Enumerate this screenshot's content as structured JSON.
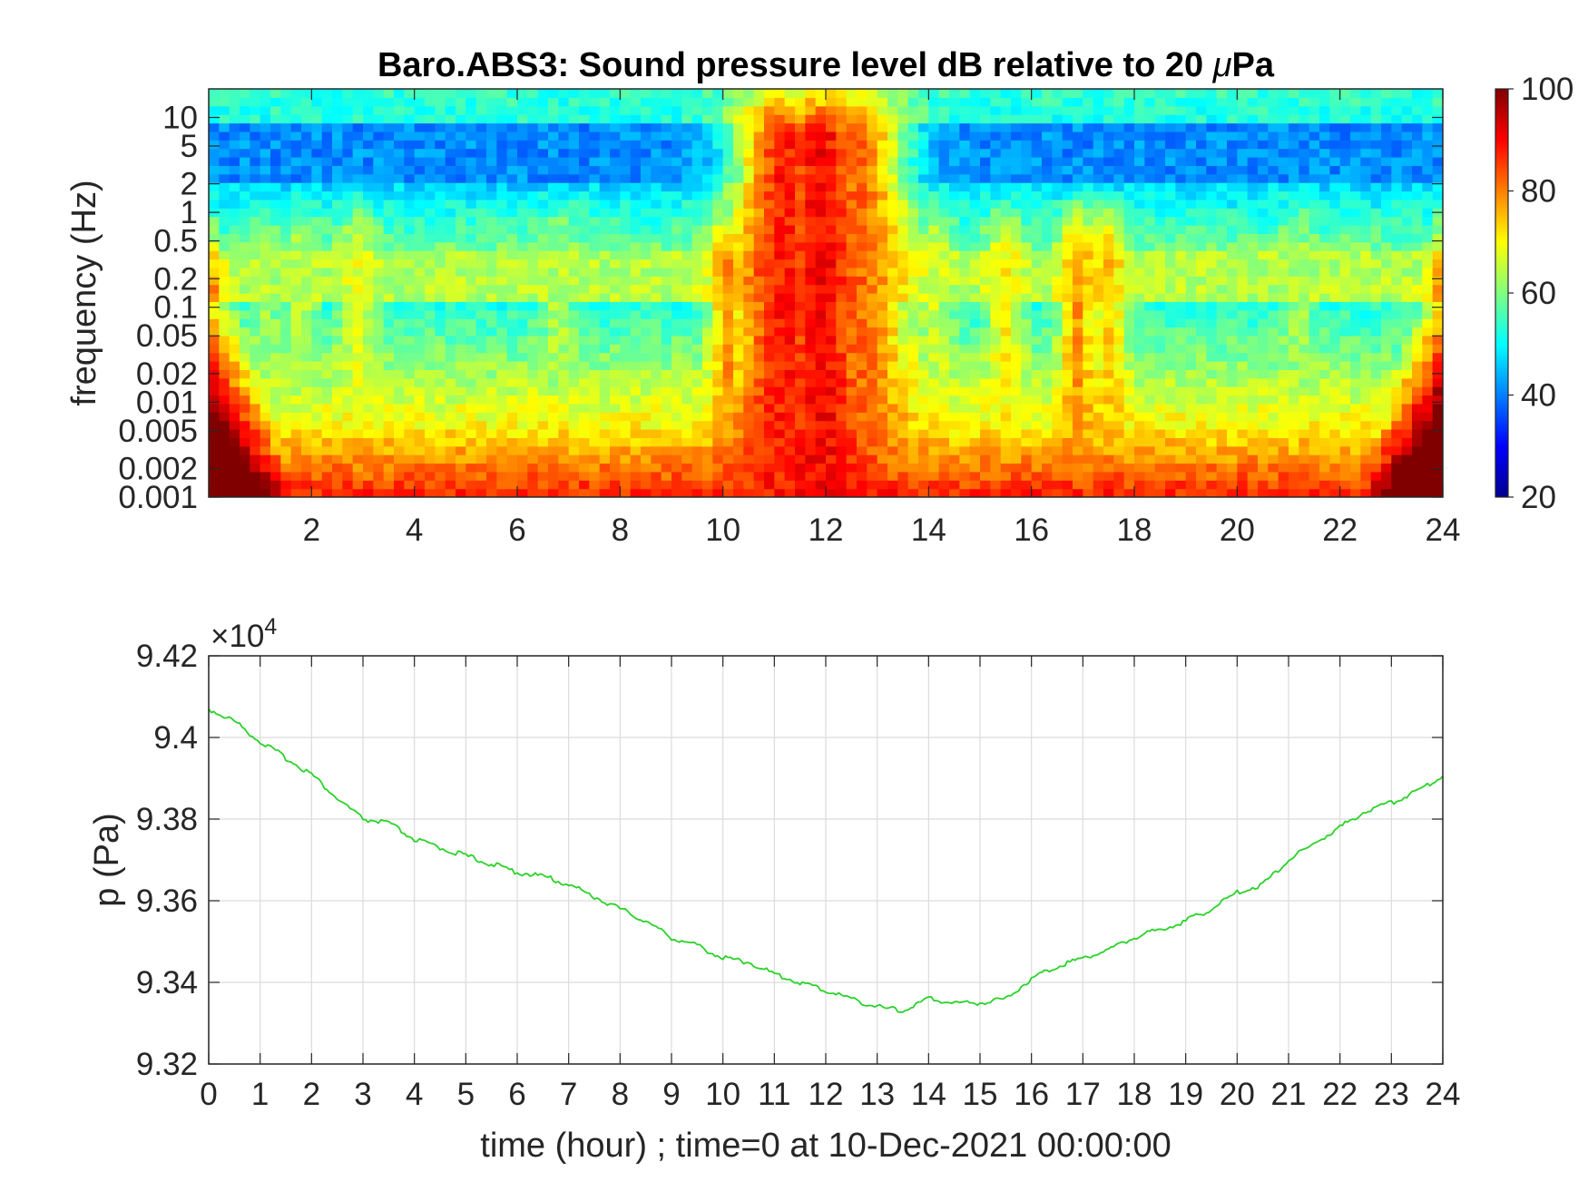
{
  "chart_data": [
    {
      "type": "heatmap",
      "title_prefix": "Baro.ABS3: Sound pressure level dB relative to 20 ",
      "title_mu": "μ",
      "title_suffix": "Pa",
      "ylabel": "frequency (Hz)",
      "x_tick_labels": [
        "2",
        "4",
        "6",
        "8",
        "10",
        "12",
        "14",
        "16",
        "18",
        "20",
        "22",
        "24"
      ],
      "x_ticks": [
        2,
        4,
        6,
        8,
        10,
        12,
        14,
        16,
        18,
        20,
        22,
        24
      ],
      "xlim": [
        0,
        24
      ],
      "y_scale": "log",
      "ylim": [
        0.001,
        20
      ],
      "y_tick_labels": [
        "0.001",
        "0.002",
        "0.005",
        "0.01",
        "0.02",
        "0.05",
        "0.1",
        "0.2",
        "0.5",
        "1",
        "2",
        "5",
        "10"
      ],
      "y_ticks": [
        0.001,
        0.002,
        0.005,
        0.01,
        0.02,
        0.05,
        0.1,
        0.2,
        0.5,
        1,
        2,
        5,
        10
      ],
      "colormap": "jet",
      "colorbar": {
        "range": [
          20,
          100
        ],
        "tick_labels": [
          "20",
          "40",
          "60",
          "80",
          "100"
        ],
        "ticks": [
          20,
          40,
          60,
          80,
          100
        ]
      },
      "bursts": [
        {
          "t": 1.1,
          "level": 62
        },
        {
          "t": 1.8,
          "level": 64
        },
        {
          "t": 2.9,
          "level": 68
        },
        {
          "t": 6.8,
          "level": 63
        },
        {
          "t": 10.1,
          "level": 78
        },
        {
          "t": 11.2,
          "level": 88
        },
        {
          "t": 11.9,
          "level": 90
        },
        {
          "t": 12.6,
          "level": 82
        },
        {
          "t": 14.1,
          "level": 66
        },
        {
          "t": 15.5,
          "level": 70
        },
        {
          "t": 16.9,
          "level": 78
        },
        {
          "t": 17.5,
          "level": 74
        },
        {
          "t": 21.2,
          "level": 62
        }
      ]
    },
    {
      "type": "line",
      "ylabel": "p (Pa)",
      "xlabel": "time (hour) ; time=0 at 10-Dec-2021 00:00:00",
      "y_exponent_prefix": "×10",
      "y_exponent": "4",
      "xlim": [
        0,
        24
      ],
      "ylim": [
        93200,
        94200
      ],
      "x_tick_labels": [
        "0",
        "1",
        "2",
        "3",
        "4",
        "5",
        "6",
        "7",
        "8",
        "9",
        "10",
        "11",
        "12",
        "13",
        "14",
        "15",
        "16",
        "17",
        "18",
        "19",
        "20",
        "21",
        "22",
        "23",
        "24"
      ],
      "y_tick_labels": [
        "9.32",
        "9.34",
        "9.36",
        "9.38",
        "9.4",
        "9.42"
      ],
      "y_ticks": [
        93200,
        93400,
        93600,
        93800,
        94000,
        94200
      ],
      "grid": true,
      "line_color": "#2ad22a",
      "series": [
        {
          "x": [
            0,
            0.5,
            1,
            1.5,
            2,
            2.5,
            3,
            3.5,
            4,
            4.5,
            5,
            5.5,
            6,
            6.5,
            7,
            7.5,
            8,
            8.5,
            9,
            9.5,
            10,
            10.5,
            11,
            11.5,
            12,
            12.5,
            13,
            13.5,
            14,
            14.5,
            15,
            15.5,
            16,
            16.5,
            17,
            17.5,
            18,
            18.5,
            19,
            19.5,
            20,
            20.5,
            21,
            21.5,
            22,
            22.5,
            23,
            23.5,
            24
          ],
          "y": [
            94070,
            94040,
            93990,
            93950,
            93910,
            93850,
            93800,
            93790,
            93750,
            93730,
            93710,
            93690,
            93670,
            93660,
            93640,
            93610,
            93580,
            93550,
            93510,
            93490,
            93460,
            93450,
            93420,
            93400,
            93380,
            93360,
            93340,
            93330,
            93360,
            93350,
            93350,
            93360,
            93410,
            93440,
            93460,
            93480,
            93510,
            93530,
            93550,
            93580,
            93620,
            93640,
            93700,
            93740,
            93780,
            93820,
            93840,
            93870,
            93905
          ]
        }
      ]
    }
  ]
}
